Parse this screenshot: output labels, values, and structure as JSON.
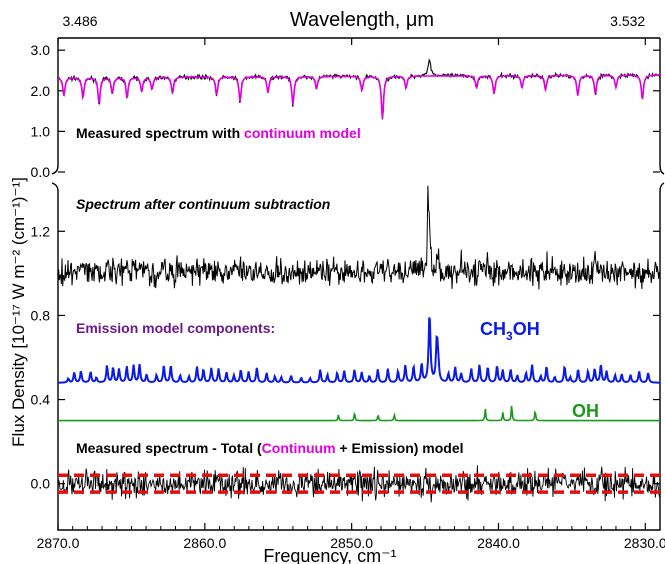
{
  "chart_data": {
    "type": "line",
    "title": "",
    "top_axis": {
      "label": "Wavelength, μm",
      "tick_labels": [
        "3.486",
        "3.532"
      ],
      "tick_freqs": [
        2868.5,
        2831.2
      ]
    },
    "xlabel": "Frequency, cm⁻¹",
    "ylabel": "Flux Density [10⁻¹⁷ W m⁻² (cm⁻¹)⁻¹]",
    "xlim": [
      2870,
      2829
    ],
    "xticks": [
      2870,
      2860,
      2850,
      2840,
      2830
    ],
    "panels": [
      {
        "name": "measured",
        "ylim": [
          0,
          3.3
        ],
        "yticks": [
          0.0,
          1.0,
          2.0,
          3.0
        ],
        "label_prefix": "Measured spectrum with ",
        "label_highlight": "continuum model",
        "series": [
          {
            "name": "Measured spectrum",
            "color": "#000000",
            "baseline": 2.35,
            "noise": 0.045
          },
          {
            "name": "continuum model",
            "color": "#e000e0",
            "baseline": 2.33
          }
        ],
        "absorption_lines": [
          {
            "x": 2869.6,
            "depth": 0.45
          },
          {
            "x": 2868.3,
            "depth": 0.5
          },
          {
            "x": 2867.2,
            "depth": 0.65
          },
          {
            "x": 2866.3,
            "depth": 0.4
          },
          {
            "x": 2865.3,
            "depth": 0.5
          },
          {
            "x": 2864.3,
            "depth": 0.35
          },
          {
            "x": 2863.6,
            "depth": 0.3
          },
          {
            "x": 2862.2,
            "depth": 0.4
          },
          {
            "x": 2859.2,
            "depth": 0.45
          },
          {
            "x": 2857.6,
            "depth": 0.6
          },
          {
            "x": 2855.7,
            "depth": 0.4
          },
          {
            "x": 2854.0,
            "depth": 0.7
          },
          {
            "x": 2852.4,
            "depth": 0.3
          },
          {
            "x": 2849.3,
            "depth": 0.35
          },
          {
            "x": 2847.9,
            "depth": 1.05
          },
          {
            "x": 2846.3,
            "depth": 0.3
          },
          {
            "x": 2841.5,
            "depth": 0.3
          },
          {
            "x": 2840.3,
            "depth": 0.45
          },
          {
            "x": 2838.4,
            "depth": 0.3
          },
          {
            "x": 2836.8,
            "depth": 0.35
          },
          {
            "x": 2834.6,
            "depth": 0.5
          },
          {
            "x": 2833.4,
            "depth": 0.45
          },
          {
            "x": 2832.0,
            "depth": 0.3
          },
          {
            "x": 2830.2,
            "depth": 0.6
          }
        ],
        "emission_bump": {
          "x": 2844.7,
          "height": 0.38
        }
      },
      {
        "name": "emission",
        "ylim": [
          -0.22,
          1.42
        ],
        "yticks": [
          0.0,
          0.4,
          0.8,
          1.2
        ],
        "labels": {
          "residual_after_continuum": "Spectrum after continuum subtraction",
          "components": "Emission model components:",
          "methanol_main": "CH",
          "methanol_sub": "3",
          "methanol_rest": "OH",
          "oh": "OH",
          "residual_prefix": "Measured spectrum - Total (",
          "residual_continuum": "Continuum",
          "residual_suffix": " + Emission) model"
        },
        "series": [
          {
            "name": "Spectrum after continuum subtraction",
            "color": "#000000",
            "baseline": 1.0,
            "noise": 0.06
          },
          {
            "name": "CH3OH",
            "color": "#0a1ae8",
            "baseline": 0.48
          },
          {
            "name": "OH",
            "color": "#1a9a1a",
            "baseline": 0.3
          },
          {
            "name": "Measured spectrum - Total (Continuum + Emission) model",
            "color": "#000000",
            "baseline": 0.0,
            "noise": 0.06
          },
          {
            "name": "zero-level band",
            "color": "#e01010",
            "levels": [
              -0.04,
              0.04
            ]
          }
        ],
        "oh_lines": [
          {
            "x": 2850.9,
            "height": 0.03
          },
          {
            "x": 2849.8,
            "height": 0.04
          },
          {
            "x": 2848.2,
            "height": 0.03
          },
          {
            "x": 2847.1,
            "height": 0.03
          },
          {
            "x": 2840.9,
            "height": 0.06
          },
          {
            "x": 2839.7,
            "height": 0.04
          },
          {
            "x": 2839.1,
            "height": 0.08
          },
          {
            "x": 2837.5,
            "height": 0.05
          }
        ],
        "ch3oh_peaks": [
          {
            "x": 2844.7,
            "height": 0.3
          },
          {
            "x": 2844.2,
            "height": 0.2
          }
        ]
      }
    ]
  }
}
